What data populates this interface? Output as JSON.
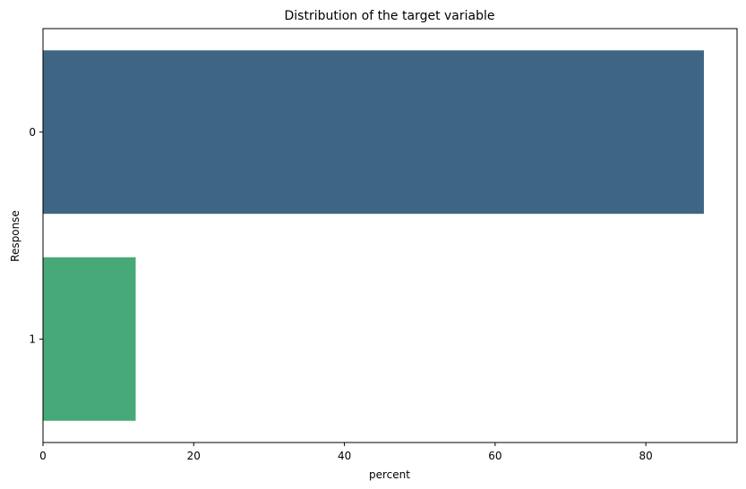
{
  "chart_data": {
    "type": "bar",
    "orientation": "horizontal",
    "title": "Distribution of the target variable",
    "xlabel": "percent",
    "ylabel": "Response",
    "categories": [
      "0",
      "1"
    ],
    "values": [
      87.7,
      12.3
    ],
    "colors": [
      "#3e6684",
      "#47a878"
    ],
    "xlim": [
      0,
      92.1
    ],
    "xticks": [
      "0",
      "20",
      "40",
      "60",
      "80"
    ],
    "grid": false,
    "legend": "none"
  }
}
